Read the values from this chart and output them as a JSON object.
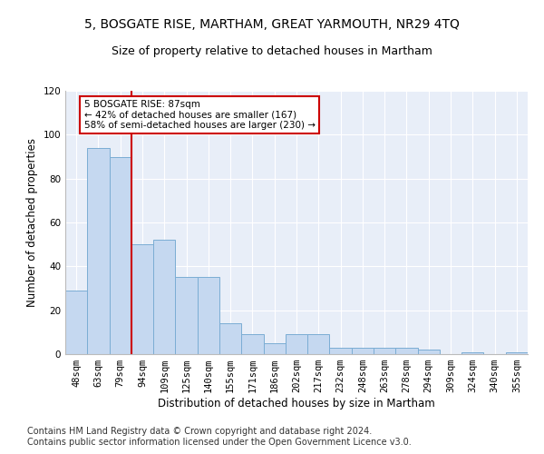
{
  "title1": "5, BOSGATE RISE, MARTHAM, GREAT YARMOUTH, NR29 4TQ",
  "title2": "Size of property relative to detached houses in Martham",
  "xlabel": "Distribution of detached houses by size in Martham",
  "ylabel": "Number of detached properties",
  "categories": [
    "48sqm",
    "63sqm",
    "79sqm",
    "94sqm",
    "109sqm",
    "125sqm",
    "140sqm",
    "155sqm",
    "171sqm",
    "186sqm",
    "202sqm",
    "217sqm",
    "232sqm",
    "248sqm",
    "263sqm",
    "278sqm",
    "294sqm",
    "309sqm",
    "324sqm",
    "340sqm",
    "355sqm"
  ],
  "values": [
    29,
    94,
    90,
    50,
    52,
    35,
    35,
    14,
    9,
    5,
    9,
    9,
    3,
    3,
    3,
    3,
    2,
    0,
    1,
    0,
    1
  ],
  "bar_color": "#c5d8f0",
  "bar_edge_color": "#7badd4",
  "vline_x": 2.5,
  "vline_color": "#cc0000",
  "annotation_box_text": "5 BOSGATE RISE: 87sqm\n← 42% of detached houses are smaller (167)\n58% of semi-detached houses are larger (230) →",
  "box_color": "white",
  "box_edge_color": "#cc0000",
  "ylim": [
    0,
    120
  ],
  "yticks": [
    0,
    20,
    40,
    60,
    80,
    100,
    120
  ],
  "footer1": "Contains HM Land Registry data © Crown copyright and database right 2024.",
  "footer2": "Contains public sector information licensed under the Open Government Licence v3.0.",
  "bg_color": "#e8eef8",
  "grid_color": "#ffffff",
  "title1_fontsize": 10,
  "title2_fontsize": 9,
  "xlabel_fontsize": 8.5,
  "ylabel_fontsize": 8.5,
  "tick_fontsize": 7.5,
  "annot_fontsize": 7.5,
  "footer_fontsize": 7.0
}
